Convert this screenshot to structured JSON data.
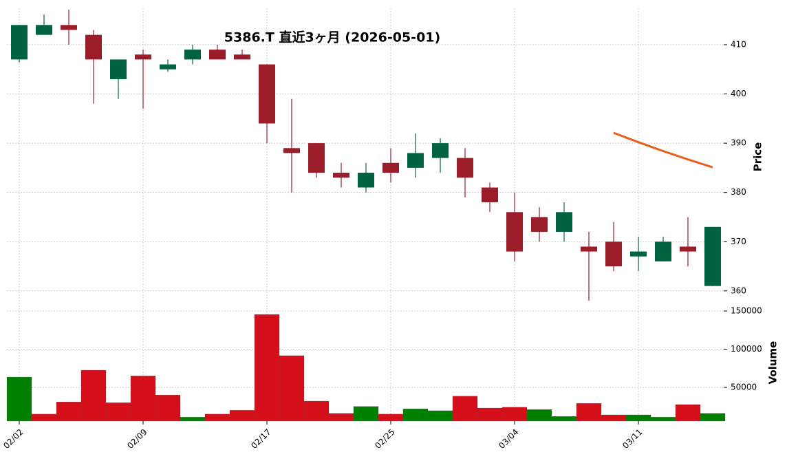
{
  "chart_data": {
    "type": "candlestick",
    "title": "5386.T 直近3ヶ月 (2026-05-01)",
    "ylabel": "Price",
    "categories": [
      "02/02",
      null,
      null,
      null,
      null,
      "02/09",
      null,
      null,
      null,
      null,
      "02/17",
      null,
      null,
      null,
      null,
      "02/25",
      null,
      null,
      null,
      null,
      "03/04",
      null,
      null,
      null,
      null,
      "03/11",
      null,
      null,
      null
    ],
    "open": [
      407,
      412,
      414,
      412,
      403,
      408,
      405,
      407,
      409,
      408,
      406,
      389,
      390,
      384,
      381,
      386,
      385,
      387,
      387,
      381,
      376,
      375,
      372,
      369,
      370,
      367,
      366,
      369,
      361
    ],
    "high": [
      414,
      416.1,
      417.1,
      413,
      407,
      409,
      407,
      410,
      410,
      409,
      406,
      399,
      390,
      386,
      386,
      389,
      392,
      391,
      389,
      382,
      380,
      377,
      378,
      372,
      374,
      371,
      371,
      375,
      373
    ],
    "low": [
      406.4,
      412,
      410,
      398,
      399,
      397,
      404.5,
      406,
      407,
      407,
      390,
      380,
      383,
      381,
      380,
      382,
      383,
      384,
      379,
      376,
      366,
      370,
      370,
      358,
      364,
      364,
      366,
      365,
      361
    ],
    "close": [
      414,
      414,
      413,
      407,
      407,
      407,
      406,
      409,
      407,
      407,
      394,
      388,
      384,
      383,
      384,
      384,
      388,
      390,
      383,
      378,
      368,
      372,
      376,
      368,
      365,
      368,
      370,
      368,
      373
    ],
    "up_color": "#006340",
    "down_color": "#9b1d2a",
    "ma": {
      "color": "#e8601c",
      "values": [
        null,
        null,
        null,
        null,
        null,
        null,
        null,
        null,
        null,
        null,
        null,
        null,
        null,
        null,
        null,
        null,
        null,
        null,
        null,
        null,
        null,
        null,
        null,
        null,
        392.1,
        390.2,
        388.4,
        386.7,
        385.1
      ]
    },
    "ylim": [
      357.6,
      417.4
    ],
    "yticks": [
      360,
      370,
      380,
      390,
      400,
      410
    ],
    "grid": true,
    "volume": {
      "ylabel": "Volume",
      "values": [
        63500,
        15000,
        31000,
        72500,
        30000,
        65000,
        40000,
        11000,
        15000,
        20000,
        145500,
        91500,
        32000,
        16000,
        25000,
        15000,
        22000,
        19500,
        38500,
        23000,
        24000,
        21000,
        12000,
        29000,
        14000,
        14000,
        11000,
        27500,
        16000
      ],
      "colors": [
        "#008000",
        "#d40f1a",
        "#d40f1a",
        "#d40f1a",
        "#d40f1a",
        "#d40f1a",
        "#d40f1a",
        "#008000",
        "#d40f1a",
        "#d40f1a",
        "#d40f1a",
        "#d40f1a",
        "#d40f1a",
        "#d40f1a",
        "#008000",
        "#d40f1a",
        "#008000",
        "#008000",
        "#d40f1a",
        "#d40f1a",
        "#d40f1a",
        "#008000",
        "#008000",
        "#d40f1a",
        "#d40f1a",
        "#008000",
        "#008000",
        "#d40f1a",
        "#008000"
      ],
      "ylim": [
        5900,
        156300
      ],
      "yticks": [
        50000,
        100000,
        150000
      ]
    }
  }
}
